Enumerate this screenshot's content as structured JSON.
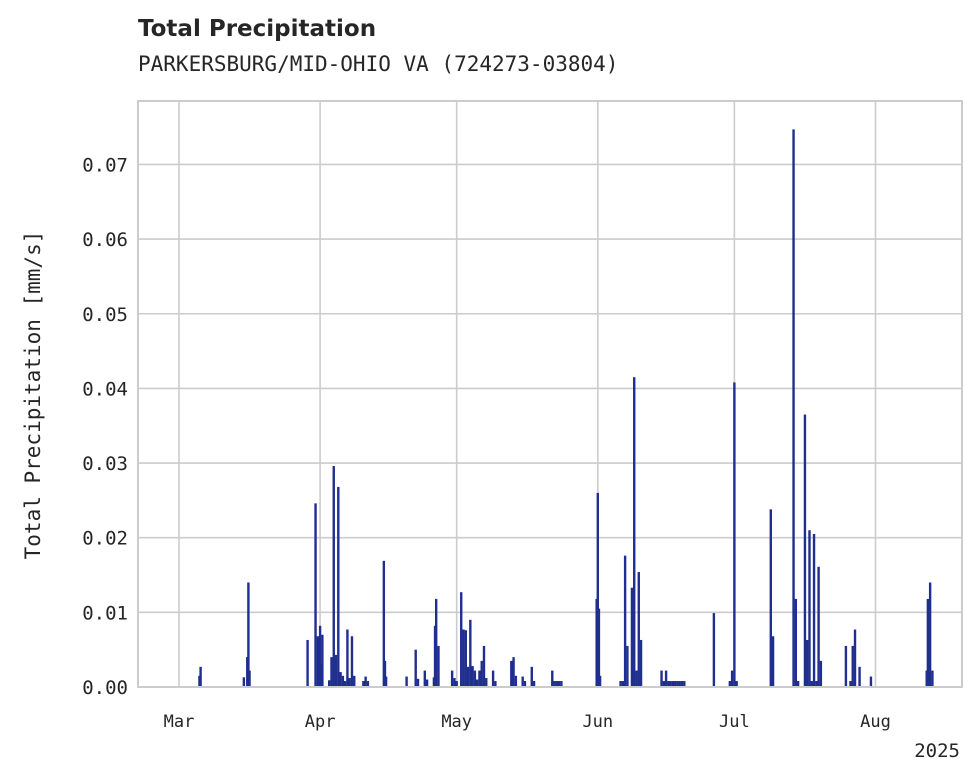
{
  "chart_data": {
    "type": "bar",
    "title": "Total Precipitation",
    "subtitle": "PARKERSBURG/MID-OHIO VA (724273-03804)",
    "ylabel": "Total Precipitation [mm/s]",
    "xlabel": "",
    "year_label": "2025",
    "ylim": [
      0,
      0.0785
    ],
    "xlim": [
      "2025-02-20",
      "2025-08-20"
    ],
    "grid": true,
    "legend": "none",
    "bar_color": "#1f2e8f",
    "y_ticks": [
      {
        "value": 0.0,
        "label": "0.00"
      },
      {
        "value": 0.01,
        "label": "0.01"
      },
      {
        "value": 0.02,
        "label": "0.02"
      },
      {
        "value": 0.03,
        "label": "0.03"
      },
      {
        "value": 0.04,
        "label": "0.04"
      },
      {
        "value": 0.05,
        "label": "0.05"
      },
      {
        "value": 0.06,
        "label": "0.06"
      },
      {
        "value": 0.07,
        "label": "0.07"
      }
    ],
    "x_ticks": [
      {
        "value": "2025-03-01",
        "label": "Mar"
      },
      {
        "value": "2025-04-01",
        "label": "Apr"
      },
      {
        "value": "2025-05-01",
        "label": "May"
      },
      {
        "value": "2025-06-01",
        "label": "Jun"
      },
      {
        "value": "2025-07-01",
        "label": "Jul"
      },
      {
        "value": "2025-08-01",
        "label": "Aug"
      }
    ],
    "points": [
      [
        "2025-03-05T12:00",
        0.0015
      ],
      [
        "2025-03-05T18:00",
        0.0027
      ],
      [
        "2025-03-15T06:00",
        0.0013
      ],
      [
        "2025-03-16T00:00",
        0.004
      ],
      [
        "2025-03-16T06:00",
        0.014
      ],
      [
        "2025-03-16T12:00",
        0.0022
      ],
      [
        "2025-03-29T06:00",
        0.0063
      ],
      [
        "2025-03-31T00:00",
        0.0246
      ],
      [
        "2025-03-31T12:00",
        0.0068
      ],
      [
        "2025-04-01T00:00",
        0.0082
      ],
      [
        "2025-04-01T06:00",
        0.003
      ],
      [
        "2025-04-01T12:00",
        0.007
      ],
      [
        "2025-04-03T00:00",
        0.0009
      ],
      [
        "2025-04-03T12:00",
        0.004
      ],
      [
        "2025-04-04T00:00",
        0.0296
      ],
      [
        "2025-04-04T12:00",
        0.0043
      ],
      [
        "2025-04-05T00:00",
        0.0268
      ],
      [
        "2025-04-05T12:00",
        0.002
      ],
      [
        "2025-04-06T00:00",
        0.0015
      ],
      [
        "2025-04-06T12:00",
        0.0008
      ],
      [
        "2025-04-07T00:00",
        0.0077
      ],
      [
        "2025-04-07T12:00",
        0.0012
      ],
      [
        "2025-04-08T00:00",
        0.0068
      ],
      [
        "2025-04-08T12:00",
        0.0015
      ],
      [
        "2025-04-10T12:00",
        0.0008
      ],
      [
        "2025-04-11T00:00",
        0.0014
      ],
      [
        "2025-04-11T12:00",
        0.0008
      ],
      [
        "2025-04-15T00:00",
        0.0169
      ],
      [
        "2025-04-15T06:00",
        0.0035
      ],
      [
        "2025-04-15T12:00",
        0.0014
      ],
      [
        "2025-04-20T00:00",
        0.0014
      ],
      [
        "2025-04-22T00:00",
        0.005
      ],
      [
        "2025-04-22T12:00",
        0.0011
      ],
      [
        "2025-04-24T00:00",
        0.0022
      ],
      [
        "2025-04-24T12:00",
        0.001
      ],
      [
        "2025-04-26T00:00",
        0.0013
      ],
      [
        "2025-04-26T06:00",
        0.0082
      ],
      [
        "2025-04-26T12:00",
        0.0118
      ],
      [
        "2025-04-27T00:00",
        0.0055
      ],
      [
        "2025-04-30T00:00",
        0.0022
      ],
      [
        "2025-04-30T12:00",
        0.0012
      ],
      [
        "2025-05-01T00:00",
        0.0008
      ],
      [
        "2025-05-02T00:00",
        0.0127
      ],
      [
        "2025-05-02T12:00",
        0.0077
      ],
      [
        "2025-05-03T00:00",
        0.0076
      ],
      [
        "2025-05-03T12:00",
        0.0027
      ],
      [
        "2025-05-04T00:00",
        0.009
      ],
      [
        "2025-05-04T12:00",
        0.0028
      ],
      [
        "2025-05-05T00:00",
        0.0022
      ],
      [
        "2025-05-05T12:00",
        0.001
      ],
      [
        "2025-05-06T00:00",
        0.0022
      ],
      [
        "2025-05-06T12:00",
        0.0035
      ],
      [
        "2025-05-07T00:00",
        0.0055
      ],
      [
        "2025-05-07T12:00",
        0.0012
      ],
      [
        "2025-05-09T00:00",
        0.0022
      ],
      [
        "2025-05-09T12:00",
        0.0008
      ],
      [
        "2025-05-13T00:00",
        0.0035
      ],
      [
        "2025-05-13T12:00",
        0.004
      ],
      [
        "2025-05-14T00:00",
        0.0015
      ],
      [
        "2025-05-15T12:00",
        0.0014
      ],
      [
        "2025-05-16T00:00",
        0.0008
      ],
      [
        "2025-05-17T12:00",
        0.0027
      ],
      [
        "2025-05-18T00:00",
        0.0008
      ],
      [
        "2025-05-22T00:00",
        0.0022
      ],
      [
        "2025-05-22T12:00",
        0.0008
      ],
      [
        "2025-05-23T00:00",
        0.0008
      ],
      [
        "2025-05-23T12:00",
        0.0008
      ],
      [
        "2025-05-24T00:00",
        0.0008
      ],
      [
        "2025-05-31T18:00",
        0.0118
      ],
      [
        "2025-06-01T00:00",
        0.026
      ],
      [
        "2025-06-01T06:00",
        0.0105
      ],
      [
        "2025-06-01T12:00",
        0.0015
      ],
      [
        "2025-06-06T00:00",
        0.0008
      ],
      [
        "2025-06-06T12:00",
        0.0008
      ],
      [
        "2025-06-07T00:00",
        0.0176
      ],
      [
        "2025-06-07T12:00",
        0.0055
      ],
      [
        "2025-06-08T12:00",
        0.0133
      ],
      [
        "2025-06-09T00:00",
        0.0415
      ],
      [
        "2025-06-09T12:00",
        0.0022
      ],
      [
        "2025-06-10T00:00",
        0.0154
      ],
      [
        "2025-06-10T12:00",
        0.0063
      ],
      [
        "2025-06-15T00:00",
        0.0022
      ],
      [
        "2025-06-15T12:00",
        0.0008
      ],
      [
        "2025-06-16T00:00",
        0.0022
      ],
      [
        "2025-06-16T12:00",
        0.0008
      ],
      [
        "2025-06-17T00:00",
        0.0008
      ],
      [
        "2025-06-17T12:00",
        0.0008
      ],
      [
        "2025-06-18T00:00",
        0.0008
      ],
      [
        "2025-06-18T12:00",
        0.0008
      ],
      [
        "2025-06-19T00:00",
        0.0008
      ],
      [
        "2025-06-19T12:00",
        0.0008
      ],
      [
        "2025-06-20T00:00",
        0.0008
      ],
      [
        "2025-06-26T12:00",
        0.0099
      ],
      [
        "2025-06-30T00:00",
        0.0008
      ],
      [
        "2025-06-30T12:00",
        0.0022
      ],
      [
        "2025-07-01T00:00",
        0.0408
      ],
      [
        "2025-07-01T12:00",
        0.0008
      ],
      [
        "2025-07-09T00:00",
        0.0238
      ],
      [
        "2025-07-09T12:00",
        0.0068
      ],
      [
        "2025-07-14T00:00",
        0.0747
      ],
      [
        "2025-07-14T12:00",
        0.0118
      ],
      [
        "2025-07-15T00:00",
        0.0008
      ],
      [
        "2025-07-16T12:00",
        0.0365
      ],
      [
        "2025-07-17T00:00",
        0.0063
      ],
      [
        "2025-07-17T12:00",
        0.021
      ],
      [
        "2025-07-18T00:00",
        0.0008
      ],
      [
        "2025-07-18T12:00",
        0.0205
      ],
      [
        "2025-07-19T00:00",
        0.0008
      ],
      [
        "2025-07-19T12:00",
        0.0161
      ],
      [
        "2025-07-20T00:00",
        0.0035
      ],
      [
        "2025-07-25T12:00",
        0.0055
      ],
      [
        "2025-07-26T12:00",
        0.0008
      ],
      [
        "2025-07-27T00:00",
        0.0055
      ],
      [
        "2025-07-27T12:00",
        0.0077
      ],
      [
        "2025-07-28T12:00",
        0.0027
      ],
      [
        "2025-07-31T00:00",
        0.0014
      ],
      [
        "2025-08-12T06:00",
        0.0022
      ],
      [
        "2025-08-12T12:00",
        0.0118
      ],
      [
        "2025-08-13T00:00",
        0.014
      ],
      [
        "2025-08-13T12:00",
        0.0022
      ]
    ]
  }
}
